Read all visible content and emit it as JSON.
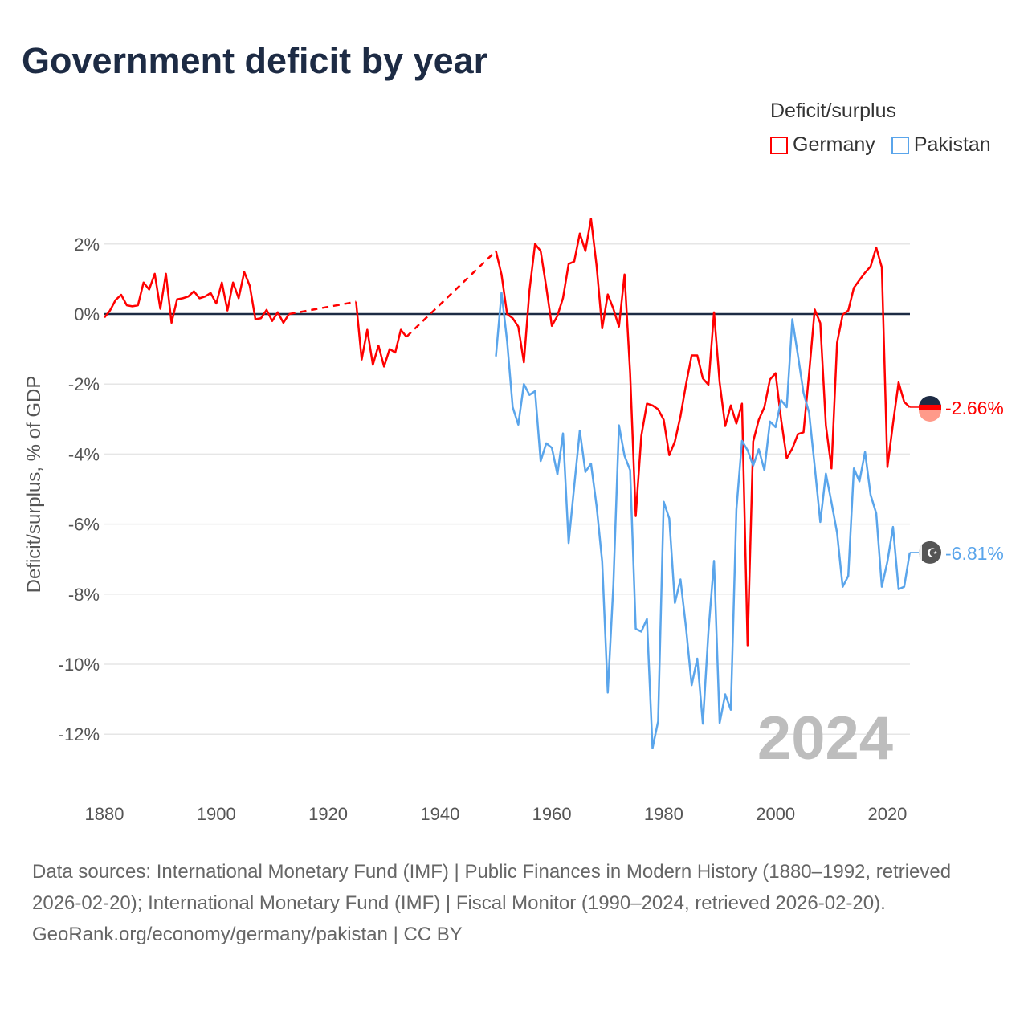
{
  "title": "Government deficit by year",
  "chart_data": {
    "type": "line",
    "title": "Government deficit by year",
    "xlabel": "",
    "ylabel": "Deficit/surplus, % of GDP",
    "xlim": [
      1880,
      2024
    ],
    "ylim": [
      -13,
      3
    ],
    "x_ticks": [
      "1880",
      "1900",
      "1920",
      "1940",
      "1960",
      "1980",
      "2000",
      "2020"
    ],
    "x_tick_values": [
      1880,
      1900,
      1920,
      1940,
      1960,
      1980,
      2000,
      2020
    ],
    "y_ticks": [
      "2%",
      "0%",
      "-2%",
      "-4%",
      "-6%",
      "-8%",
      "-10%",
      "-12%"
    ],
    "y_tick_values": [
      2,
      0,
      -2,
      -4,
      -6,
      -8,
      -10,
      -12
    ],
    "grid": true,
    "legend_title": "Deficit/surplus",
    "legend_position": "top-right",
    "year_watermark": "2024",
    "series": [
      {
        "name": "Germany",
        "color": "#ff0000",
        "end_label": "-2.66%",
        "segments": [
          {
            "start": 1880,
            "values": [
              -0.1,
              0.1,
              0.4,
              0.55,
              0.25,
              0.22,
              0.25,
              0.9,
              0.7,
              1.15,
              0.15,
              1.15,
              -0.25,
              0.42,
              0.45,
              0.5,
              0.65,
              0.45,
              0.5,
              0.6,
              0.3,
              0.9,
              0.1,
              0.9,
              0.45,
              1.2,
              0.8,
              -0.15,
              -0.12,
              0.12,
              -0.2,
              0.05,
              -0.25,
              0.0
            ]
          },
          {
            "start": 1925,
            "values": [
              0.35,
              -1.3,
              -0.45,
              -1.45,
              -0.9,
              -1.5,
              -1.0,
              -1.1,
              -0.45,
              -0.65
            ]
          },
          {
            "start": 1950,
            "values": [
              1.8,
              1.13,
              0.0,
              -0.12,
              -0.36,
              -1.38,
              0.67,
              2.0,
              1.8,
              0.77,
              -0.34,
              -0.05,
              0.46,
              1.43,
              1.5,
              2.3,
              1.8,
              2.72,
              1.38,
              -0.41,
              0.56,
              0.15,
              -0.36,
              1.13,
              -1.69,
              -5.77,
              -3.48,
              -2.56,
              -2.61,
              -2.72,
              -3.02,
              -4.03,
              -3.64,
              -2.92,
              -2.0,
              -1.18,
              -1.18,
              -1.84,
              -2.02,
              0.05,
              -1.95,
              -3.2,
              -2.61,
              -3.13,
              -2.56,
              -9.46,
              -3.64,
              -3.02,
              -2.66,
              -1.87,
              -1.69,
              -3.02,
              -4.12,
              -3.84,
              -3.43,
              -3.38,
              -1.69,
              0.13,
              -0.26,
              -3.18,
              -4.41,
              -0.82,
              -0.02,
              0.1,
              0.75,
              0.97,
              1.18,
              1.36,
              1.9,
              1.33,
              -4.37,
              -3.13,
              -1.95,
              -2.51,
              -2.66
            ]
          }
        ]
      },
      {
        "name": "Pakistan",
        "color": "#5aa5eb",
        "end_label": "-6.81%",
        "segments": [
          {
            "start": 1950,
            "values": [
              -1.21,
              0.61,
              -0.77,
              -2.66,
              -3.16,
              -2.0,
              -2.31,
              -2.2,
              -4.2,
              -3.69,
              -3.82,
              -4.58,
              -3.41,
              -6.54,
              -4.92,
              -3.33,
              -4.51,
              -4.27,
              -5.48,
              -7.07,
              -10.81,
              -7.74,
              -3.18,
              -4.05,
              -4.46,
              -8.99,
              -9.07,
              -8.71,
              -12.4,
              -11.63,
              -5.36,
              -5.84,
              -8.25,
              -7.58,
              -8.97,
              -10.6,
              -9.84,
              -11.7,
              -9.07,
              -7.05,
              -11.68,
              -10.86,
              -11.3,
              -5.58,
              -3.62,
              -3.89,
              -4.33,
              -3.86,
              -4.46,
              -3.07,
              -3.23,
              -2.46,
              -2.66,
              -0.15,
              -1.18,
              -2.25,
              -2.82,
              -4.35,
              -5.94,
              -4.56,
              -5.38,
              -6.25,
              -7.79,
              -7.48,
              -4.41,
              -4.78,
              -3.94,
              -5.17,
              -5.69,
              -7.79,
              -7.07,
              -6.08,
              -7.86,
              -7.79,
              -6.81
            ]
          }
        ]
      }
    ]
  },
  "footer": {
    "sources": "Data sources: International Monetary Fund (IMF) | Public Finances in Modern History (1880–1992, retrieved 2026-02-20); International Monetary Fund (IMF) | Fiscal Monitor (1990–2024, retrieved 2026-02-20).",
    "credit": "GeoRank.org/economy/germany/pakistan | CC BY"
  }
}
